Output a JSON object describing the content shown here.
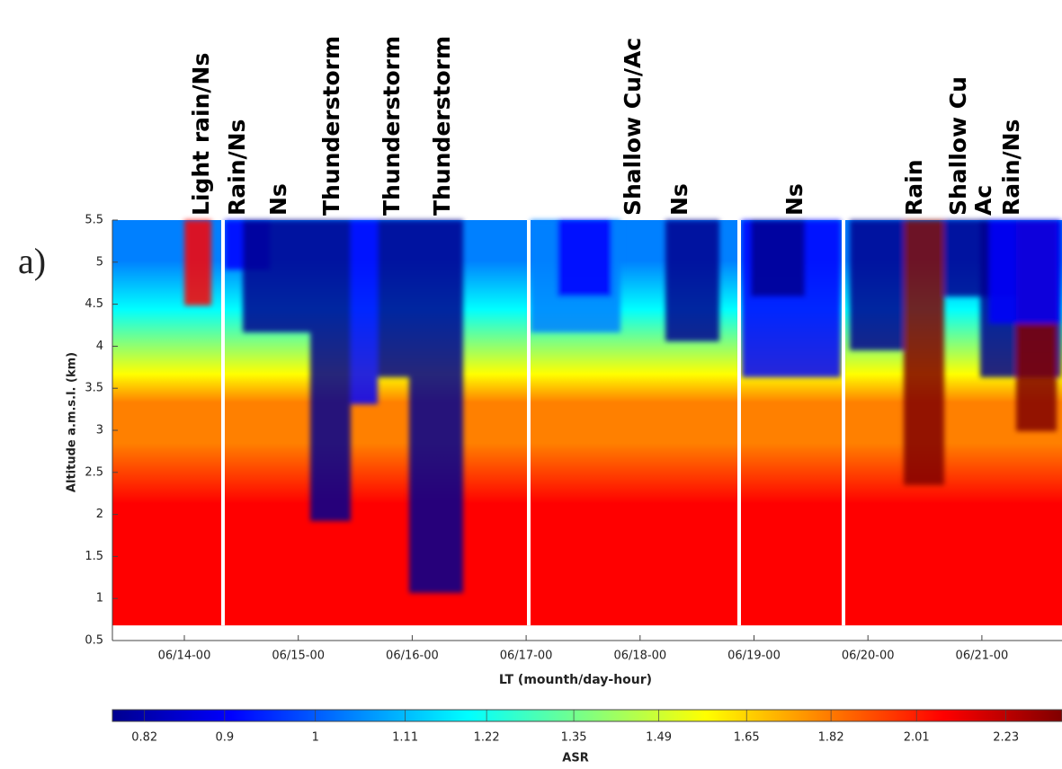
{
  "label": "a)",
  "chart_data": {
    "type": "heatmap",
    "annotations": [
      "Light rain/Ns",
      "Rain/Ns",
      "Ns",
      "Thunderstorm",
      "Thunderstorm",
      "Thunderstorm",
      "Shallow Cu/Ac",
      "Ns",
      "Ns",
      "Rain",
      "Shallow Cu",
      "Ac",
      "Rain/Ns"
    ],
    "ylabel": "Altitude a.m.s.l. (km)",
    "xlabel": "LT (mounth/day-hour)",
    "ylim": [
      0.5,
      5.5
    ],
    "yticks": [
      0.5,
      1,
      1.5,
      2,
      2.5,
      3,
      3.5,
      4,
      4.5,
      5,
      5.5
    ],
    "xticks": [
      "06/14-00",
      "06/15-00",
      "06/16-00",
      "06/17-00",
      "06/18-00",
      "06/19-00",
      "06/20-00",
      "06/21-00"
    ],
    "colorbar": {
      "label": "ASR",
      "log": true,
      "clim": [
        0.79,
        2.38
      ],
      "ticks": [
        0.82,
        0.9,
        1,
        1.11,
        1.22,
        1.35,
        1.49,
        1.65,
        1.82,
        2.01,
        2.23
      ],
      "colors": [
        "#00008f",
        "#0000ff",
        "#0080ff",
        "#00ffff",
        "#80ff80",
        "#ffff00",
        "#ff8000",
        "#ff0000",
        "#800000"
      ]
    }
  }
}
